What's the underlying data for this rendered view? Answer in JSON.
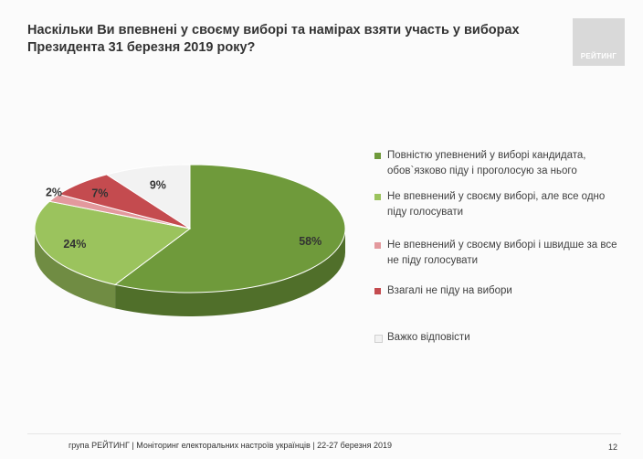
{
  "title": {
    "line1": "Наскільки Ви впевнені у своєму виборі та намірах взяти участь у виборах",
    "line2": "Президента 31 березня 2019 року?"
  },
  "brand": {
    "label": "РЕЙТИНГ",
    "color": "#d9d9d9"
  },
  "chart_data": {
    "type": "pie",
    "title": "Наскільки Ви впевнені у своєму виборі та намірах взяти участь у виборах Президента 31 березня 2019 року?",
    "style": "3d",
    "legend_position": "right",
    "slices": [
      {
        "label": "Повністю упевнений у виборі кандидата, обов`язково піду і проголосую за нього",
        "value": 58,
        "value_label": "58%",
        "color": "#6f9a3b"
      },
      {
        "label": "Не впевнений у своєму виборі, але все одно піду голосувати",
        "value": 24,
        "value_label": "24%",
        "color": "#9bc35d"
      },
      {
        "label": "Не впевнений у своєму виборі і швидше за все не піду голосувати",
        "value": 2,
        "value_label": "2%",
        "color": "#e3999d"
      },
      {
        "label": "Взагалі не піду на вибори",
        "value": 7,
        "value_label": "7%",
        "color": "#c44b4f"
      },
      {
        "label": "Важко відповісти",
        "value": 9,
        "value_label": "9%",
        "color": "#f2f2f2"
      }
    ]
  },
  "legend": {
    "items": [
      {
        "line1": "Повністю упевнений у виборі кандидата,",
        "line2": "обов`язково піду і проголосую за нього",
        "color": "#6f9a3b"
      },
      {
        "line1": "Не впевнений у своєму виборі, але все одно",
        "line2": "піду голосувати",
        "color": "#9bc35d"
      },
      {
        "line1": "Не впевнений у своєму виборі і швидше за все",
        "line2": "не піду голосувати",
        "color": "#e3999d"
      },
      {
        "line1": "Взагалі не піду на вибори",
        "line2": "",
        "color": "#c44b4f"
      },
      {
        "line1": "Важко відповісти",
        "line2": "",
        "color": "#f2f2f2"
      }
    ]
  },
  "footer": {
    "text": "група РЕЙТИНГ | Моніторинг електоральних настроїв українців  |  22-27 березня 2019",
    "page_number": "12"
  }
}
